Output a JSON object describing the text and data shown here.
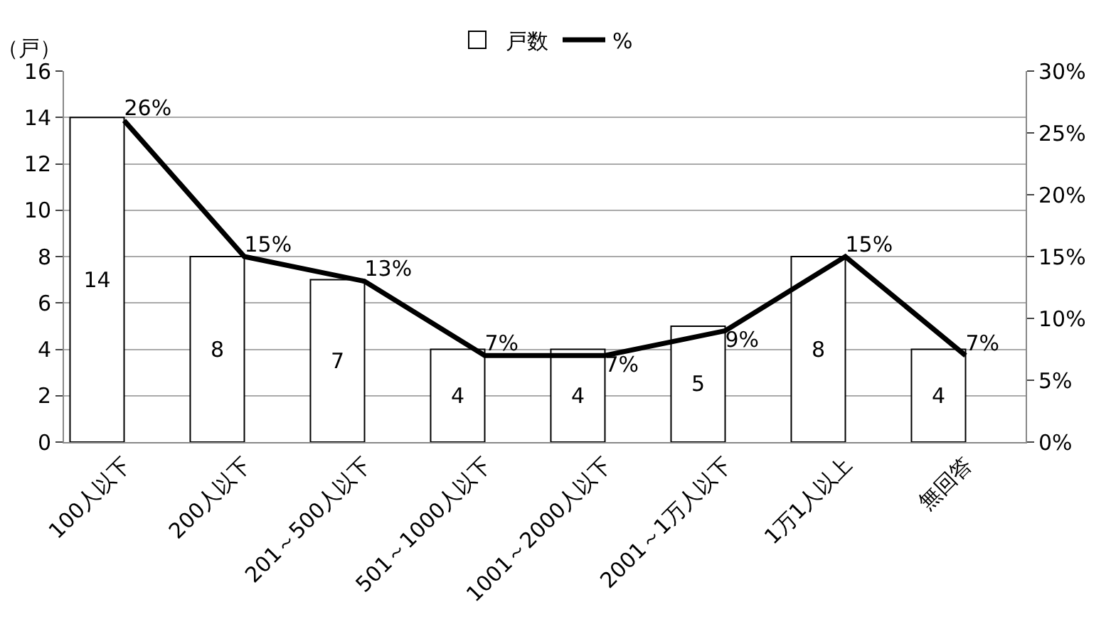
{
  "chart_data": {
    "type": "bar",
    "categories": [
      "100人以下",
      "200人以下",
      "201～500人以下",
      "501～1000人以下",
      "1001～2000人以下",
      "2001～1万人以下",
      "1万1人以上",
      "無回答"
    ],
    "ylabel": "（戸）",
    "series": [
      {
        "name": "戸数",
        "color": "#ffffff",
        "values": [
          14,
          8,
          7,
          4,
          4,
          5,
          8,
          4
        ]
      },
      {
        "name": "%",
        "type": "line",
        "axis": "y2",
        "color": "#000000",
        "values": [
          26,
          15,
          13,
          7,
          7,
          9,
          15,
          7
        ],
        "value_labels": [
          "26%",
          "15%",
          "13%",
          "7%",
          "7%",
          "9%",
          "15%",
          "7%"
        ]
      }
    ],
    "data_labels": true,
    "ylim": [
      0,
      16
    ],
    "yticks": [
      0,
      2,
      4,
      6,
      8,
      10,
      12,
      14,
      16
    ],
    "y2lim": [
      0,
      30
    ],
    "y2ticks": [
      {
        "value": 0,
        "label": "0%"
      },
      {
        "value": 5,
        "label": "5%"
      },
      {
        "value": 10,
        "label": "10%"
      },
      {
        "value": 15,
        "label": "15%"
      },
      {
        "value": 20,
        "label": "20%"
      },
      {
        "value": 25,
        "label": "25%"
      },
      {
        "value": 30,
        "label": "30%"
      }
    ],
    "grid": "y",
    "legend": "top",
    "marker": "none",
    "line_style": "solid"
  }
}
